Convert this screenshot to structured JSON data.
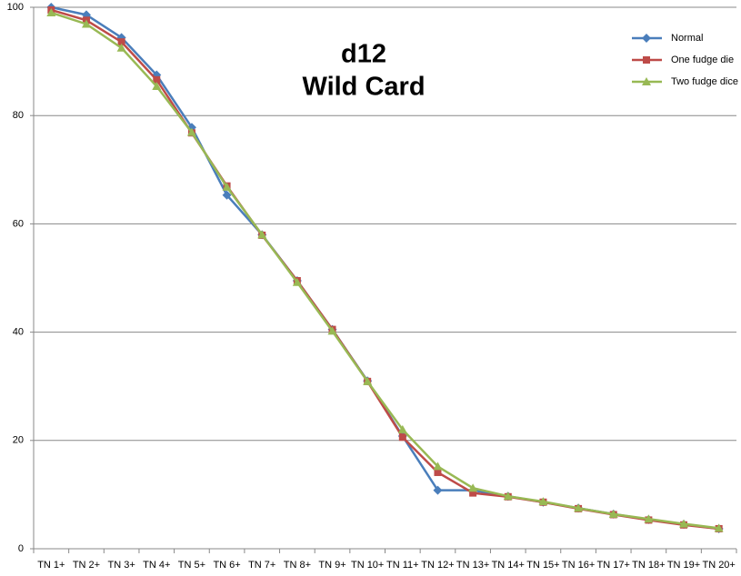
{
  "chart_data": {
    "type": "line",
    "title": [
      "d12",
      "Wild Card"
    ],
    "categories": [
      "TN 1+",
      "TN 2+",
      "TN 3+",
      "TN 4+",
      "TN 5+",
      "TN 6+",
      "TN 7+",
      "TN 8+",
      "TN 9+",
      "TN 10+",
      "TN 11+",
      "TN 12+",
      "TN 13+",
      "TN 14+",
      "TN 15+",
      "TN 16+",
      "TN 17+",
      "TN 18+",
      "TN 19+",
      "TN 20+"
    ],
    "series": [
      {
        "name": "Normal",
        "color": "#4a7ebb",
        "marker": "diamond",
        "values": [
          100,
          98.6,
          94.4,
          87.5,
          77.8,
          65.3,
          58,
          49.5,
          40.5,
          31,
          20.8,
          10.8,
          10.8,
          9.7,
          8.6,
          7.5,
          6.4,
          5.4,
          4.5,
          3.7
        ]
      },
      {
        "name": "One fudge die",
        "color": "#be4b48",
        "marker": "square",
        "values": [
          99.5,
          97.6,
          93.6,
          86.6,
          76.8,
          67,
          57.9,
          49.5,
          40.5,
          30.9,
          20.6,
          14.1,
          10.3,
          9.6,
          8.6,
          7.4,
          6.3,
          5.3,
          4.4,
          3.7
        ]
      },
      {
        "name": "Two fudge dice",
        "color": "#98b954",
        "marker": "triangle",
        "values": [
          99,
          96.9,
          92.5,
          85.4,
          76.9,
          66.8,
          58,
          49.2,
          40.2,
          30.9,
          22,
          15.2,
          11.2,
          9.7,
          8.7,
          7.5,
          6.4,
          5.5,
          4.6,
          3.8
        ]
      }
    ],
    "ylim": [
      0,
      100
    ],
    "yticks": [
      0,
      20,
      40,
      60,
      80,
      100
    ],
    "grid": true,
    "legend": "top-right"
  }
}
